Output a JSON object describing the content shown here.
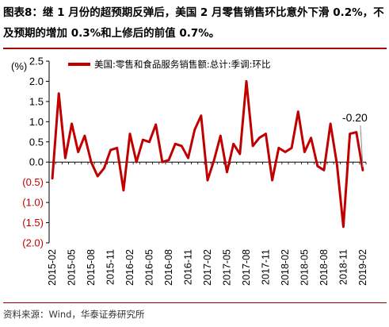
{
  "caption": {
    "label": "图表8：",
    "text": "继 1 月份的超预期反弹后，美国 2 月零售销售环比意外下滑 0.2%，不及预期的增加 0.3%和上修后的前值 0.7%。"
  },
  "source": "资料来源：Wind，华泰证券研究所",
  "colors": {
    "line": "#c00000",
    "rule": "#a30000",
    "negative_label": "#c00000"
  },
  "chart_data": {
    "type": "line",
    "unit": "(%)",
    "ylim": [
      -2.0,
      2.5
    ],
    "yticks": [
      {
        "value": 2.5,
        "label": "2.5"
      },
      {
        "value": 2.0,
        "label": "2.0"
      },
      {
        "value": 1.5,
        "label": "1.5"
      },
      {
        "value": 1.0,
        "label": "1.0"
      },
      {
        "value": 0.5,
        "label": "0.5"
      },
      {
        "value": 0.0,
        "label": "0.0"
      },
      {
        "value": -0.5,
        "label": "(0.5)"
      },
      {
        "value": -1.0,
        "label": "(1.0)"
      },
      {
        "value": -1.5,
        "label": "(1.5)"
      },
      {
        "value": -2.0,
        "label": "(2.0)"
      }
    ],
    "xtick_labels": [
      "2015-02",
      "2015-05",
      "2015-08",
      "2015-11",
      "2016-02",
      "2016-05",
      "2016-08",
      "2016-11",
      "2017-02",
      "2017-05",
      "2017-08",
      "2017-11",
      "2018-02",
      "2018-05",
      "2018-08",
      "2018-11",
      "2019-02"
    ],
    "grid": false,
    "legend_position": "top-left",
    "series": [
      {
        "name": "美国:零售和食品服务销售额:总计:季调:环比",
        "x": [
          "2015-02",
          "2015-03",
          "2015-04",
          "2015-05",
          "2015-06",
          "2015-07",
          "2015-08",
          "2015-09",
          "2015-10",
          "2015-11",
          "2015-12",
          "2016-01",
          "2016-02",
          "2016-03",
          "2016-04",
          "2016-05",
          "2016-06",
          "2016-07",
          "2016-08",
          "2016-09",
          "2016-10",
          "2016-11",
          "2016-12",
          "2017-01",
          "2017-02",
          "2017-03",
          "2017-04",
          "2017-05",
          "2017-06",
          "2017-07",
          "2017-08",
          "2017-09",
          "2017-10",
          "2017-11",
          "2017-12",
          "2018-01",
          "2018-02",
          "2018-03",
          "2018-04",
          "2018-05",
          "2018-06",
          "2018-07",
          "2018-08",
          "2018-09",
          "2018-10",
          "2018-11",
          "2018-12",
          "2019-01",
          "2019-02"
        ],
        "values": [
          -0.4,
          1.7,
          0.1,
          0.95,
          0.25,
          0.65,
          0.0,
          -0.35,
          -0.15,
          0.3,
          0.35,
          -0.7,
          0.7,
          0.0,
          0.55,
          0.5,
          0.93,
          0.0,
          0.05,
          0.45,
          0.4,
          0.1,
          0.8,
          1.15,
          -0.45,
          0.05,
          0.65,
          -0.25,
          0.45,
          0.2,
          2.0,
          0.4,
          0.6,
          0.7,
          -0.45,
          0.35,
          0.25,
          0.35,
          1.25,
          0.25,
          0.6,
          -0.1,
          -0.2,
          0.95,
          -0.05,
          -1.6,
          0.7,
          0.74,
          -0.2
        ]
      }
    ],
    "annotations": [
      {
        "text": "-0.20",
        "x": "2019-02",
        "y": -0.2
      }
    ]
  }
}
